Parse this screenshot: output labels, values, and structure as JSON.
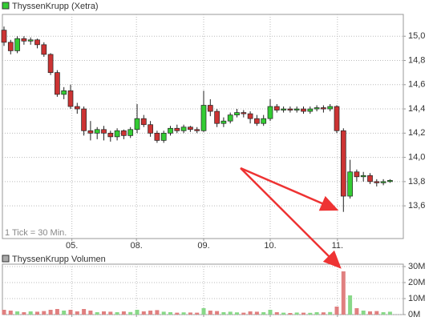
{
  "chart_data": [
    {
      "type": "candlestick",
      "series": [
        {
          "name": "ThyssenKrupp (Xetra)",
          "color": "#33cc33",
          "open": [
            15.05,
            14.95,
            14.88,
            14.98,
            14.96,
            14.97,
            14.93,
            14.85,
            14.7,
            14.52,
            14.55,
            14.42,
            14.4,
            14.22,
            14.2,
            14.23,
            14.2,
            14.17,
            14.22,
            14.18,
            14.23,
            14.32,
            14.27,
            14.2,
            14.14,
            14.2,
            14.24,
            14.22,
            14.25,
            14.23,
            14.22,
            14.43,
            14.38,
            14.28,
            14.3,
            14.35,
            14.37,
            14.36,
            14.32,
            14.28,
            14.32,
            14.42,
            14.39,
            14.4,
            14.39,
            14.4,
            14.38,
            14.4,
            14.41,
            14.4,
            14.42,
            14.22,
            13.68,
            13.88,
            13.84,
            13.85,
            13.8,
            13.79,
            13.8
          ],
          "high": [
            15.08,
            14.97,
            15.0,
            15.0,
            14.99,
            14.98,
            14.95,
            14.86,
            14.72,
            14.58,
            14.6,
            14.45,
            14.42,
            14.3,
            14.25,
            14.26,
            14.22,
            14.24,
            14.23,
            14.25,
            14.44,
            14.35,
            14.3,
            14.22,
            14.22,
            14.26,
            14.27,
            14.27,
            14.26,
            14.25,
            14.55,
            14.48,
            14.4,
            14.33,
            14.37,
            14.4,
            14.39,
            14.38,
            14.35,
            14.35,
            14.48,
            14.44,
            14.42,
            14.42,
            14.42,
            14.42,
            14.42,
            14.43,
            14.43,
            14.44,
            14.43,
            14.24,
            13.98,
            13.9,
            13.88,
            13.87,
            13.82,
            13.82,
            13.82
          ],
          "low": [
            14.92,
            14.85,
            14.86,
            14.93,
            14.93,
            14.9,
            14.83,
            14.68,
            14.5,
            14.48,
            14.4,
            14.36,
            14.18,
            14.14,
            14.15,
            14.14,
            14.13,
            14.14,
            14.15,
            14.16,
            14.2,
            14.25,
            14.17,
            14.12,
            14.12,
            14.18,
            14.2,
            14.2,
            14.21,
            14.2,
            14.21,
            14.34,
            14.25,
            14.25,
            14.28,
            14.33,
            14.33,
            14.28,
            14.26,
            14.26,
            14.3,
            14.37,
            14.37,
            14.37,
            14.37,
            14.36,
            14.36,
            14.38,
            14.37,
            14.38,
            14.2,
            13.55,
            13.66,
            13.8,
            13.8,
            13.78,
            13.76,
            13.77,
            13.79
          ],
          "close": [
            14.95,
            14.88,
            14.98,
            14.96,
            14.97,
            14.93,
            14.85,
            14.7,
            14.52,
            14.55,
            14.42,
            14.4,
            14.22,
            14.2,
            14.23,
            14.2,
            14.17,
            14.22,
            14.18,
            14.23,
            14.32,
            14.27,
            14.2,
            14.14,
            14.2,
            14.24,
            14.22,
            14.25,
            14.23,
            14.22,
            14.43,
            14.38,
            14.28,
            14.3,
            14.35,
            14.37,
            14.36,
            14.32,
            14.28,
            14.32,
            14.42,
            14.39,
            14.4,
            14.39,
            14.4,
            14.38,
            14.4,
            14.41,
            14.4,
            14.42,
            14.22,
            13.68,
            13.88,
            13.84,
            13.85,
            13.8,
            13.79,
            13.8,
            13.81
          ]
        }
      ],
      "up_color": "#33cc33",
      "down_color": "#cc3333",
      "annotation": "1 Tick = 30 Min.",
      "xlim": [
        -0.24,
        60
      ],
      "xticks": [
        {
          "value": 10.2,
          "label": "05."
        },
        {
          "value": 19.9,
          "label": "08."
        },
        {
          "value": 30,
          "label": "09."
        },
        {
          "value": 40,
          "label": "10."
        },
        {
          "value": 50.1,
          "label": "11."
        }
      ],
      "ylim": [
        13.33,
        15.18
      ],
      "yticks": [
        {
          "value": 13.6,
          "label": "13,6"
        },
        {
          "value": 13.8,
          "label": "13,8"
        },
        {
          "value": 14,
          "label": "14,0"
        },
        {
          "value": 14.2,
          "label": "14,2"
        },
        {
          "value": 14.4,
          "label": "14,4"
        },
        {
          "value": 14.6,
          "label": "14,6"
        },
        {
          "value": 14.8,
          "label": "14,8"
        },
        {
          "value": 15,
          "label": "15,0"
        }
      ],
      "grid": true
    },
    {
      "type": "bar",
      "series": [
        {
          "name": "ThyssenKrupp Volumen",
          "color": "#aaaaaa",
          "values": [
            3000000,
            2500000,
            2000000,
            1500000,
            2000000,
            1800000,
            2200000,
            3000000,
            3500000,
            2500000,
            3000000,
            2000000,
            3500000,
            2500000,
            1500000,
            2000000,
            1800000,
            1500000,
            2000000,
            1600000,
            3000000,
            2000000,
            2500000,
            2800000,
            1800000,
            1500000,
            1200000,
            1400000,
            1300000,
            1200000,
            4000000,
            2500000,
            2200000,
            1500000,
            1800000,
            1400000,
            1200000,
            2000000,
            1800000,
            1500000,
            3000000,
            1500000,
            1200000,
            1000000,
            1300000,
            1200000,
            1100000,
            1500000,
            1400000,
            1600000,
            5000000,
            27000000,
            12000000,
            4000000,
            2500000,
            2000000,
            2200000,
            1500000,
            1800000
          ]
        }
      ],
      "up_color": "#88d888",
      "down_color": "#e08080",
      "ylim": [
        0,
        31500000
      ],
      "yticks": [
        {
          "value": 0,
          "label": "0M"
        },
        {
          "value": 10000000,
          "label": "10M"
        },
        {
          "value": 20000000,
          "label": "20M"
        },
        {
          "value": 30000000,
          "label": "30M"
        }
      ],
      "grid": true
    }
  ]
}
